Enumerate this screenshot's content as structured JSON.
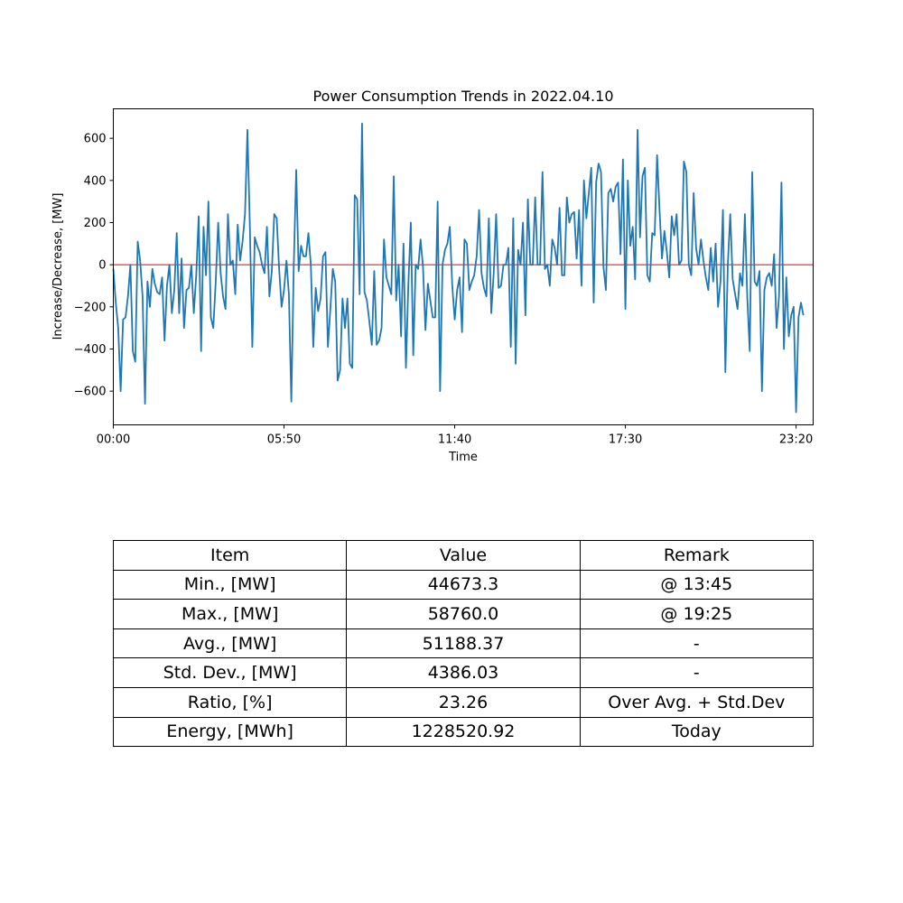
{
  "chart_data": {
    "type": "line",
    "title": "Power Consumption Trends in 2022.04.10",
    "xlabel": "Time",
    "ylabel": "Increase/Decrease, [MW]",
    "x_ticks": [
      "00:00",
      "05:50",
      "11:40",
      "17:30",
      "23:20"
    ],
    "y_ticks": [
      600,
      400,
      200,
      0,
      -200,
      -400,
      -600
    ],
    "xlim": [
      0,
      287
    ],
    "ylim": [
      -760,
      740
    ],
    "x_step_minutes": 5,
    "grid": false,
    "legend": "none",
    "reference_line": {
      "y": 0,
      "color": "#d62728"
    },
    "series": [
      {
        "color": "#1f77b4",
        "values": [
          -20,
          -180,
          -300,
          -600,
          -260,
          -250,
          -150,
          0,
          -410,
          -460,
          110,
          20,
          -150,
          -660,
          -80,
          -200,
          -20,
          -90,
          -130,
          -140,
          -60,
          -360,
          -100,
          0,
          -230,
          -120,
          150,
          -230,
          30,
          -300,
          -120,
          -110,
          0,
          -230,
          -50,
          230,
          -410,
          180,
          -50,
          300,
          -250,
          -300,
          -80,
          200,
          -40,
          -150,
          -210,
          240,
          0,
          20,
          -140,
          190,
          20,
          110,
          240,
          640,
          180,
          -390,
          130,
          90,
          60,
          0,
          -40,
          180,
          -150,
          -30,
          240,
          220,
          -20,
          -200,
          -120,
          20,
          -140,
          -650,
          0,
          450,
          -30,
          90,
          40,
          40,
          150,
          0,
          -390,
          -110,
          -220,
          -160,
          40,
          60,
          -390,
          -210,
          -20,
          -80,
          -550,
          -500,
          -160,
          -300,
          -160,
          -470,
          -490,
          330,
          310,
          -140,
          670,
          -130,
          -170,
          -270,
          -380,
          -30,
          -380,
          -360,
          -300,
          120,
          -60,
          -100,
          -140,
          420,
          -170,
          0,
          -340,
          100,
          -490,
          -90,
          200,
          -430,
          0,
          -20,
          120,
          -10,
          -310,
          -90,
          -170,
          -250,
          -250,
          300,
          -600,
          0,
          70,
          100,
          180,
          -100,
          -260,
          -120,
          -60,
          -320,
          120,
          100,
          -120,
          -80,
          -50,
          40,
          260,
          -40,
          -110,
          -150,
          220,
          -230,
          -40,
          240,
          -110,
          -100,
          0,
          0,
          80,
          -390,
          220,
          -470,
          70,
          0,
          200,
          -240,
          310,
          0,
          0,
          320,
          0,
          0,
          440,
          -20,
          0,
          -100,
          120,
          80,
          0,
          270,
          -50,
          -50,
          320,
          200,
          240,
          250,
          30,
          260,
          -100,
          400,
          220,
          340,
          460,
          -180,
          390,
          480,
          440,
          -10,
          -120,
          340,
          360,
          300,
          370,
          390,
          50,
          500,
          -210,
          400,
          90,
          180,
          -70,
          640,
          130,
          420,
          460,
          -50,
          -80,
          150,
          140,
          520,
          260,
          30,
          160,
          60,
          -60,
          230,
          140,
          240,
          0,
          20,
          490,
          440,
          0,
          -50,
          340,
          80,
          0,
          120,
          20,
          -60,
          -120,
          80,
          -80,
          100,
          -200,
          -80,
          260,
          -510,
          0,
          240,
          -70,
          -140,
          -210,
          -40,
          -100,
          240,
          -160,
          -410,
          440,
          -80,
          -100,
          -30,
          -600,
          -120,
          -60,
          -40,
          -100,
          50,
          -300,
          -150,
          390,
          -400,
          -60,
          -340,
          -240,
          -200,
          -700,
          -250,
          -180,
          -240
        ]
      }
    ]
  },
  "table": {
    "headers": [
      "Item",
      "Value",
      "Remark"
    ],
    "rows": [
      [
        "Min., [MW]",
        "44673.3",
        "@ 13:45"
      ],
      [
        "Max., [MW]",
        "58760.0",
        "@ 19:25"
      ],
      [
        "Avg., [MW]",
        "51188.37",
        "-"
      ],
      [
        "Std. Dev., [MW]",
        "4386.03",
        "-"
      ],
      [
        "Ratio, [%]",
        "23.26",
        "Over Avg. + Std.Dev"
      ],
      [
        "Energy, [MWh]",
        "1228520.92",
        "Today"
      ]
    ]
  }
}
